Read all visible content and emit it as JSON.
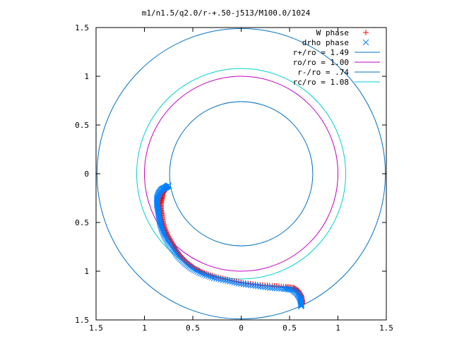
{
  "chart_data": {
    "type": "scatter",
    "title": "m1/n1.5/q2.0/r-+.50-j513/M100.0/1024",
    "xlabel": "",
    "ylabel": "",
    "xlim": [
      -1.5,
      1.5
    ],
    "ylim": [
      -1.5,
      1.5
    ],
    "x_ticks": [
      -1.5,
      -1,
      -0.5,
      0,
      0.5,
      1,
      1.5
    ],
    "y_ticks": [
      -1.5,
      -1,
      -0.5,
      0,
      0.5,
      1,
      1.5
    ],
    "x_tick_labels": [
      "1.5",
      "1",
      "0.5",
      "0",
      "0.5",
      "1",
      "1.5"
    ],
    "y_tick_labels": [
      "1.5",
      "1",
      "0.5",
      "0",
      "0.5",
      "1",
      "1.5"
    ],
    "grid": false,
    "legend_position": "top-right",
    "series": [
      {
        "name": "W phase",
        "kind": "points",
        "marker": "plus",
        "color": "#ff0000",
        "points": [
          [
            -0.76,
            -0.13
          ],
          [
            -0.78,
            -0.16
          ],
          [
            -0.81,
            -0.2
          ],
          [
            -0.82,
            -0.25
          ],
          [
            -0.83,
            -0.3
          ],
          [
            -0.83,
            -0.36
          ],
          [
            -0.82,
            -0.42
          ],
          [
            -0.81,
            -0.49
          ],
          [
            -0.79,
            -0.56
          ],
          [
            -0.76,
            -0.63
          ],
          [
            -0.72,
            -0.7
          ],
          [
            -0.68,
            -0.77
          ],
          [
            -0.63,
            -0.84
          ],
          [
            -0.56,
            -0.91
          ],
          [
            -0.48,
            -0.97
          ],
          [
            -0.38,
            -1.02
          ],
          [
            -0.26,
            -1.06
          ],
          [
            -0.12,
            -1.09
          ],
          [
            0.02,
            -1.12
          ],
          [
            0.17,
            -1.14
          ],
          [
            0.32,
            -1.15
          ],
          [
            0.46,
            -1.16
          ],
          [
            0.54,
            -1.17
          ],
          [
            0.59,
            -1.2
          ],
          [
            0.62,
            -1.25
          ],
          [
            0.63,
            -1.3
          ],
          [
            0.63,
            -1.34
          ]
        ]
      },
      {
        "name": "drho phase",
        "kind": "points",
        "marker": "cross",
        "color": "#0080ff",
        "points": [
          [
            -0.75,
            -0.12
          ],
          [
            -0.78,
            -0.14
          ],
          [
            -0.82,
            -0.16
          ],
          [
            -0.85,
            -0.2
          ],
          [
            -0.87,
            -0.25
          ],
          [
            -0.87,
            -0.31
          ],
          [
            -0.86,
            -0.37
          ],
          [
            -0.85,
            -0.43
          ],
          [
            -0.84,
            -0.5
          ],
          [
            -0.82,
            -0.57
          ],
          [
            -0.79,
            -0.64
          ],
          [
            -0.75,
            -0.71
          ],
          [
            -0.7,
            -0.78
          ],
          [
            -0.65,
            -0.85
          ],
          [
            -0.58,
            -0.92
          ],
          [
            -0.5,
            -0.98
          ],
          [
            -0.4,
            -1.03
          ],
          [
            -0.28,
            -1.07
          ],
          [
            -0.14,
            -1.1
          ],
          [
            0.0,
            -1.13
          ],
          [
            0.15,
            -1.15
          ],
          [
            0.3,
            -1.17
          ],
          [
            0.44,
            -1.18
          ],
          [
            0.53,
            -1.19
          ],
          [
            0.58,
            -1.23
          ],
          [
            0.61,
            -1.28
          ],
          [
            0.62,
            -1.33
          ],
          [
            0.62,
            -1.36
          ]
        ]
      },
      {
        "name": "r+/ro = 1.49",
        "kind": "circle",
        "radius": 1.49,
        "color": "#0070c0"
      },
      {
        "name": "ro/ro = 1.00",
        "kind": "circle",
        "radius": 1.0,
        "color": "#c000c0"
      },
      {
        "name": "r-/ro = .74",
        "kind": "circle",
        "radius": 0.74,
        "color": "#0070c0"
      },
      {
        "name": "rc/ro = 1.08",
        "kind": "circle",
        "radius": 1.08,
        "color": "#00d0d0"
      }
    ]
  }
}
